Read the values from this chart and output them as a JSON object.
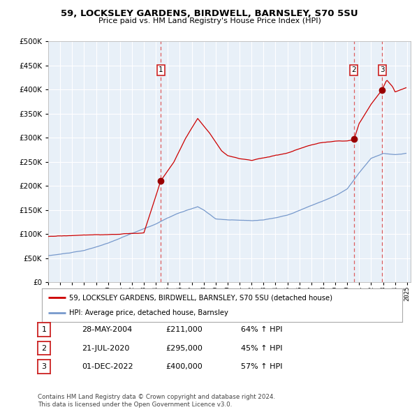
{
  "title": "59, LOCKSLEY GARDENS, BIRDWELL, BARNSLEY, S70 5SU",
  "subtitle": "Price paid vs. HM Land Registry's House Price Index (HPI)",
  "red_label": "59, LOCKSLEY GARDENS, BIRDWELL, BARNSLEY, S70 5SU (detached house)",
  "blue_label": "HPI: Average price, detached house, Barnsley",
  "sale_points": [
    {
      "num": 1,
      "date_str": "28-MAY-2004",
      "price": 211000,
      "pct": "64%",
      "x_year": 2004.41
    },
    {
      "num": 2,
      "date_str": "21-JUL-2020",
      "price": 295000,
      "pct": "45%",
      "x_year": 2020.55
    },
    {
      "num": 3,
      "date_str": "01-DEC-2022",
      "price": 400000,
      "pct": "57%",
      "x_year": 2022.92
    }
  ],
  "footer1": "Contains HM Land Registry data © Crown copyright and database right 2024.",
  "footer2": "This data is licensed under the Open Government Licence v3.0.",
  "ylim": [
    0,
    500000
  ],
  "xlim_start": 1995.0,
  "xlim_end": 2025.3,
  "red_color": "#cc0000",
  "blue_color": "#7799cc",
  "sale_dot_color": "#990000",
  "dashed_color": "#dd4444",
  "background_color": "#e8f0f8",
  "plot_bg_color": "#e8f0f8",
  "grid_color": "#ffffff",
  "legend_border_color": "#aaaaaa"
}
